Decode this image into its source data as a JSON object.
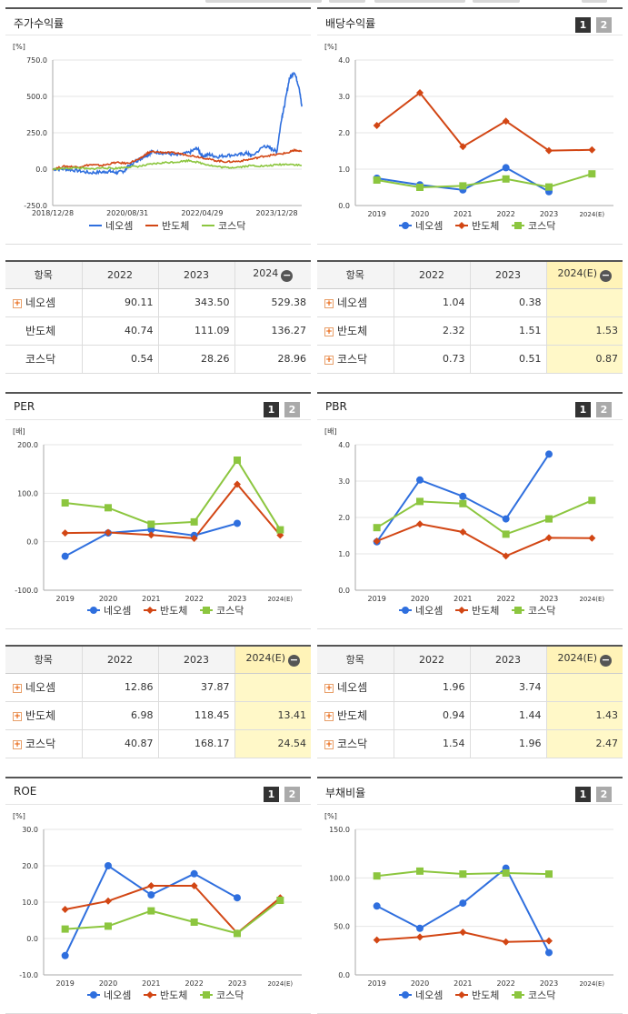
{
  "colors": {
    "s1": "#2f6fde",
    "s2": "#d24614",
    "s3": "#8cc63f"
  },
  "series_names": [
    "네오셈",
    "반도체",
    "코스닥"
  ],
  "charts": {
    "stock": {
      "title": "주가수익률",
      "unit": "[%]",
      "tabs": [],
      "chart_data": {
        "type": "line",
        "y_ticks": [
          "750.0",
          "500.0",
          "250.0",
          "0.0",
          "-250.0"
        ],
        "ylim": [
          -250,
          750
        ],
        "x_ticks": [
          "2018/12/28",
          "2020/08/31",
          "2022/04/29",
          "2023/12/28"
        ],
        "x_tick_pos": [
          0,
          0.3,
          0.6,
          0.9
        ],
        "n": 270,
        "series": [
          {
            "name": "네오셈",
            "x": [
              0,
              0.05,
              0.1,
              0.15,
              0.2,
              0.23,
              0.26,
              0.29,
              0.3,
              0.33,
              0.35,
              0.38,
              0.4,
              0.45,
              0.5,
              0.55,
              0.58,
              0.6,
              0.63,
              0.66,
              0.7,
              0.75,
              0.78,
              0.8,
              0.85,
              0.88,
              0.9,
              0.92,
              0.93,
              0.95,
              0.97,
              0.99,
              1.0
            ],
            "y": [
              0,
              0,
              -10,
              -25,
              -20,
              -15,
              -25,
              -10,
              15,
              50,
              70,
              100,
              120,
              110,
              95,
              115,
              145,
              90,
              100,
              85,
              95,
              100,
              110,
              90,
              160,
              140,
              120,
              360,
              430,
              620,
              670,
              560,
              430
            ]
          },
          {
            "name": "반도체",
            "x": [
              0,
              0.05,
              0.1,
              0.15,
              0.2,
              0.25,
              0.3,
              0.35,
              0.38,
              0.4,
              0.45,
              0.5,
              0.55,
              0.6,
              0.65,
              0.7,
              0.75,
              0.8,
              0.85,
              0.9,
              0.95,
              0.97,
              1.0
            ],
            "y": [
              0,
              20,
              15,
              30,
              25,
              45,
              40,
              70,
              110,
              120,
              115,
              110,
              95,
              80,
              60,
              50,
              55,
              70,
              90,
              100,
              115,
              130,
              120
            ]
          },
          {
            "name": "코스닥",
            "x": [
              0,
              0.05,
              0.1,
              0.15,
              0.2,
              0.25,
              0.3,
              0.35,
              0.4,
              0.45,
              0.5,
              0.55,
              0.6,
              0.65,
              0.7,
              0.75,
              0.8,
              0.85,
              0.9,
              0.95,
              1.0
            ],
            "y": [
              0,
              5,
              10,
              0,
              10,
              5,
              15,
              20,
              35,
              45,
              50,
              60,
              40,
              20,
              10,
              15,
              25,
              20,
              30,
              35,
              25
            ]
          }
        ]
      },
      "table": {
        "head": [
          "항목",
          "2022",
          "2023",
          "2024"
        ],
        "rows": [
          {
            "name": "네오셈",
            "vals": [
              "90.11",
              "343.50",
              "529.38"
            ],
            "plus": true
          },
          {
            "name": "반도체",
            "vals": [
              "40.74",
              "111.09",
              "136.27"
            ],
            "plus": false
          },
          {
            "name": "코스닥",
            "vals": [
              "0.54",
              "28.26",
              "28.96"
            ],
            "plus": false
          }
        ]
      }
    },
    "dividend": {
      "title": "배당수익률",
      "unit": "[%]",
      "tabs": [
        "1",
        "2"
      ],
      "chart_data": {
        "type": "line",
        "y_ticks": [
          "4.0",
          "3.0",
          "2.0",
          "1.0",
          "0.0"
        ],
        "ylim": [
          0,
          4
        ],
        "categories": [
          "2019",
          "2020",
          "2021",
          "2022",
          "2023",
          "2024(E)"
        ],
        "series": [
          {
            "name": "네오셈",
            "values": [
              0.75,
              0.57,
              0.43,
              1.04,
              0.38,
              null
            ]
          },
          {
            "name": "반도체",
            "values": [
              2.2,
              3.1,
              1.62,
              2.32,
              1.51,
              1.53
            ]
          },
          {
            "name": "코스닥",
            "values": [
              0.7,
              0.5,
              0.54,
              0.73,
              0.51,
              0.87
            ]
          }
        ]
      },
      "table": {
        "head": [
          "항목",
          "2022",
          "2023",
          "2024(E)"
        ],
        "rows": [
          {
            "name": "네오셈",
            "vals": [
              "1.04",
              "0.38",
              ""
            ],
            "plus": true
          },
          {
            "name": "반도체",
            "vals": [
              "2.32",
              "1.51",
              "1.53"
            ],
            "plus": true
          },
          {
            "name": "코스닥",
            "vals": [
              "0.73",
              "0.51",
              "0.87"
            ],
            "plus": true
          }
        ]
      }
    },
    "per": {
      "title": "PER",
      "unit": "[배]",
      "tabs": [
        "1",
        "2"
      ],
      "chart_data": {
        "type": "line",
        "y_ticks": [
          "200.0",
          "100.0",
          "0.0",
          "-100.0"
        ],
        "ylim": [
          -100,
          200
        ],
        "categories": [
          "2019",
          "2020",
          "2021",
          "2022",
          "2023",
          "2024(E)"
        ],
        "series": [
          {
            "name": "네오셈",
            "values": [
              -30,
              18,
              25,
              12.86,
              37.87,
              null
            ]
          },
          {
            "name": "반도체",
            "values": [
              18,
              19,
              14,
              6.98,
              118.45,
              13.41
            ]
          },
          {
            "name": "코스닥",
            "values": [
              80,
              70,
              36,
              40.87,
              168.17,
              24.54
            ]
          }
        ]
      },
      "table": {
        "head": [
          "항목",
          "2022",
          "2023",
          "2024(E)"
        ],
        "rows": [
          {
            "name": "네오셈",
            "vals": [
              "12.86",
              "37.87",
              ""
            ],
            "plus": true
          },
          {
            "name": "반도체",
            "vals": [
              "6.98",
              "118.45",
              "13.41"
            ],
            "plus": true
          },
          {
            "name": "코스닥",
            "vals": [
              "40.87",
              "168.17",
              "24.54"
            ],
            "plus": true
          }
        ]
      }
    },
    "pbr": {
      "title": "PBR",
      "unit": "[배]",
      "tabs": [
        "1",
        "2"
      ],
      "chart_data": {
        "type": "line",
        "y_ticks": [
          "4.0",
          "3.0",
          "2.0",
          "1.0",
          "0.0"
        ],
        "ylim": [
          0,
          4
        ],
        "categories": [
          "2019",
          "2020",
          "2021",
          "2022",
          "2023",
          "2024(E)"
        ],
        "series": [
          {
            "name": "네오셈",
            "values": [
              1.33,
              3.03,
              2.58,
              1.96,
              3.74,
              null
            ]
          },
          {
            "name": "반도체",
            "values": [
              1.35,
              1.82,
              1.6,
              0.94,
              1.44,
              1.43
            ]
          },
          {
            "name": "코스닥",
            "values": [
              1.72,
              2.44,
              2.38,
              1.54,
              1.96,
              2.47
            ]
          }
        ]
      },
      "table": {
        "head": [
          "항목",
          "2022",
          "2023",
          "2024(E)"
        ],
        "rows": [
          {
            "name": "네오셈",
            "vals": [
              "1.96",
              "3.74",
              ""
            ],
            "plus": true
          },
          {
            "name": "반도체",
            "vals": [
              "0.94",
              "1.44",
              "1.43"
            ],
            "plus": true
          },
          {
            "name": "코스닥",
            "vals": [
              "1.54",
              "1.96",
              "2.47"
            ],
            "plus": true
          }
        ]
      }
    },
    "roe": {
      "title": "ROE",
      "unit": "[%]",
      "tabs": [
        "1",
        "2"
      ],
      "chart_data": {
        "type": "line",
        "y_ticks": [
          "30.0",
          "20.0",
          "10.0",
          "0.0",
          "-10.0"
        ],
        "ylim": [
          -10,
          30
        ],
        "categories": [
          "2019",
          "2020",
          "2021",
          "2022",
          "2023",
          "2024(E)"
        ],
        "series": [
          {
            "name": "네오셈",
            "values": [
              -4.7,
              20,
              12,
              17.8,
              11.2,
              null
            ]
          },
          {
            "name": "반도체",
            "values": [
              8,
              10.3,
              14.5,
              14.5,
              1.5,
              11.2
            ]
          },
          {
            "name": "코스닥",
            "values": [
              2.6,
              3.4,
              7.6,
              4.5,
              1.4,
              10.5
            ]
          }
        ]
      }
    },
    "debt": {
      "title": "부채비율",
      "unit": "[%]",
      "tabs": [
        "1",
        "2"
      ],
      "chart_data": {
        "type": "line",
        "y_ticks": [
          "150.0",
          "100.0",
          "50.0",
          "0.0"
        ],
        "ylim": [
          0,
          150
        ],
        "categories": [
          "2019",
          "2020",
          "2021",
          "2022",
          "2023",
          "2024(E)"
        ],
        "series": [
          {
            "name": "네오셈",
            "values": [
              71,
              48,
              74,
              110,
              23,
              null
            ]
          },
          {
            "name": "반도체",
            "values": [
              36,
              39,
              44,
              34,
              35,
              null
            ]
          },
          {
            "name": "코스닥",
            "values": [
              102,
              107,
              104,
              105,
              104,
              null
            ]
          }
        ]
      }
    }
  }
}
